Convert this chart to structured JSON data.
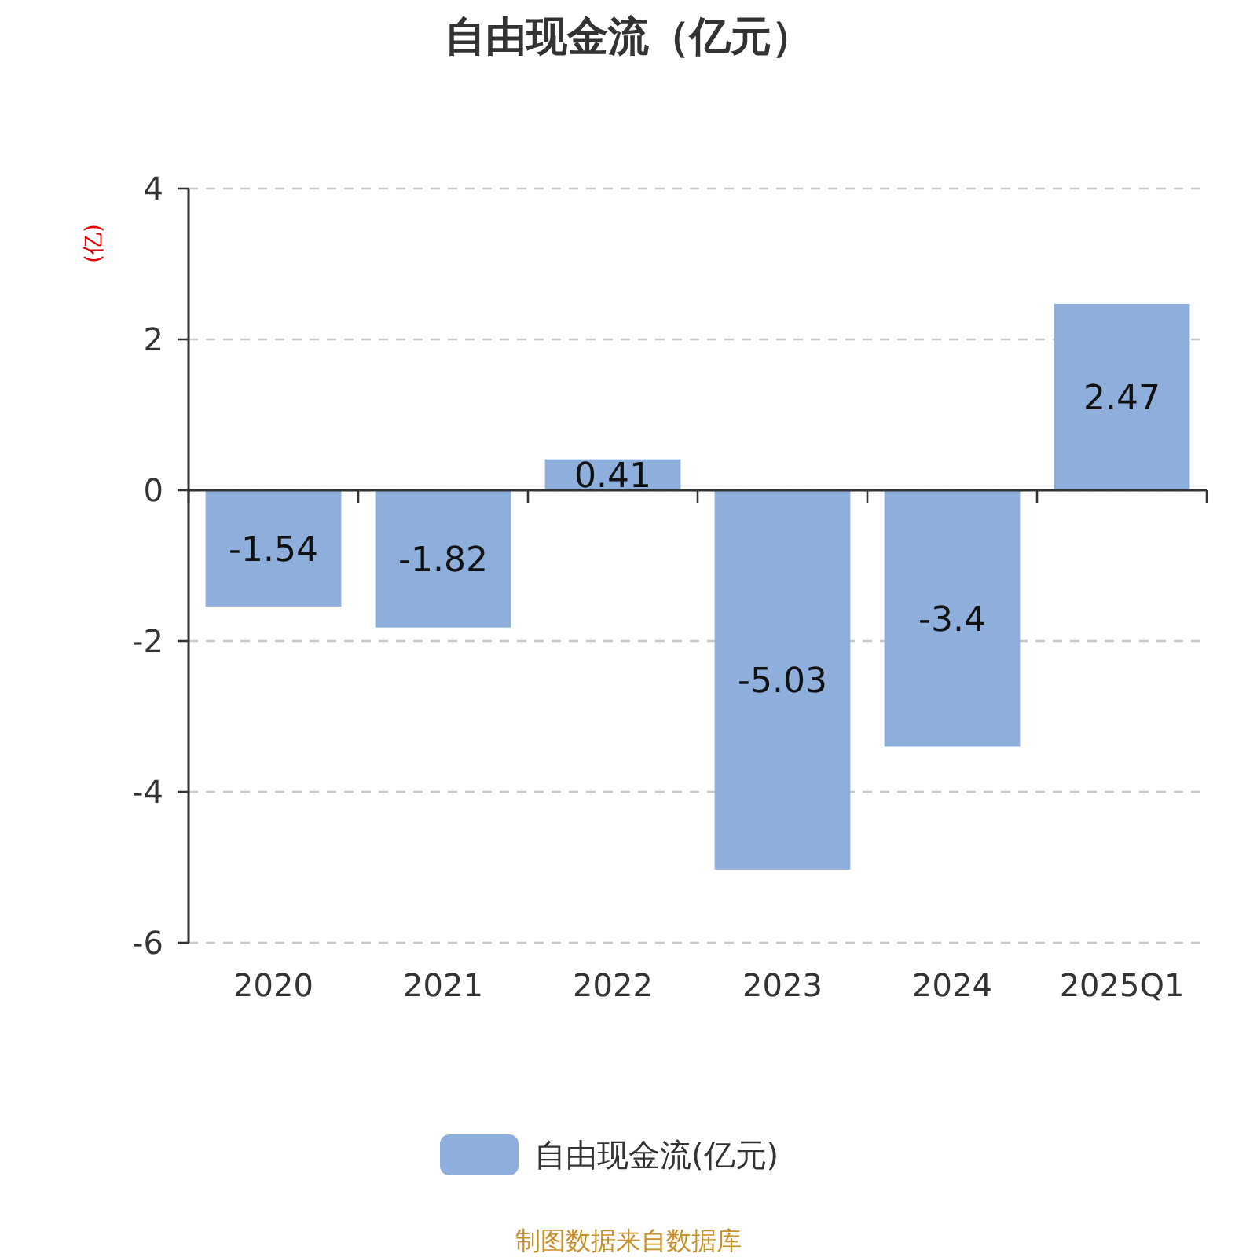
{
  "chart_data": {
    "type": "bar",
    "title": "自由现金流（亿元）",
    "ylabel": "(亿)",
    "categories": [
      "2020",
      "2021",
      "2022",
      "2023",
      "2024",
      "2025Q1"
    ],
    "series": [
      {
        "name": "自由现金流(亿元)",
        "color": "#8eaedb",
        "values": [
          -1.54,
          -1.82,
          0.41,
          -5.03,
          -3.4,
          2.47
        ]
      }
    ],
    "ylim": [
      -6,
      4
    ],
    "yticks": [
      -6,
      -4,
      -2,
      0,
      2,
      4
    ],
    "grid": "y",
    "legend": "bottom",
    "data_labels": true,
    "annotations": [
      "制图数据来自数据库"
    ]
  }
}
